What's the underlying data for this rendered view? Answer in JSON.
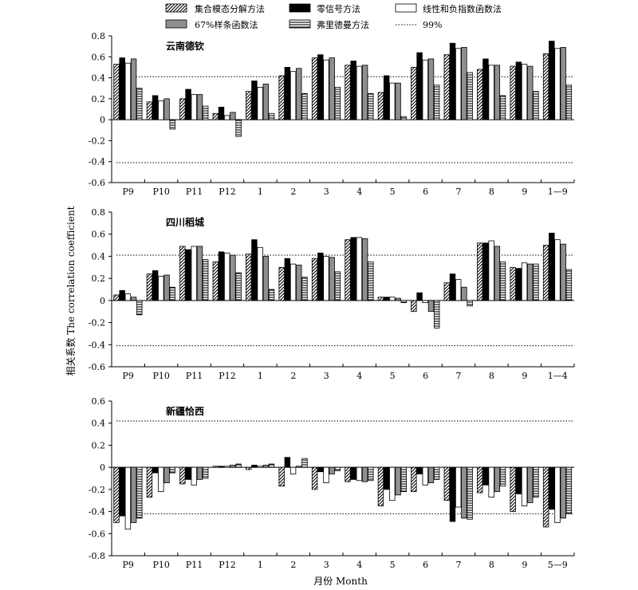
{
  "legend": [
    {
      "id": "eemd",
      "label": "集合模态分解方法"
    },
    {
      "id": "zero",
      "label": "零信号方法"
    },
    {
      "id": "linear",
      "label": "线性和负指数函数法"
    },
    {
      "id": "spline",
      "label": "67%样条函数法"
    },
    {
      "id": "fried",
      "label": "弗里德曼方法"
    },
    {
      "id": "sig",
      "label": "99%"
    }
  ],
  "axes": {
    "ylabel": "相关系数 The correlation coefficient",
    "xlabel": "月份 Month"
  },
  "chart_data": [
    {
      "type": "bar",
      "title": "云南德钦",
      "categories": [
        "P9",
        "P10",
        "P11",
        "P12",
        "1",
        "2",
        "3",
        "4",
        "5",
        "6",
        "7",
        "8",
        "9",
        "1—9"
      ],
      "ylim": [
        -0.6,
        0.8
      ],
      "yticks": [
        "0.8",
        "0.6",
        "0.4",
        "0.2",
        "0",
        "-0.2",
        "-0.4",
        "-0.6"
      ],
      "significance": [
        0.41,
        -0.41
      ],
      "series": [
        {
          "name": "集合模态分解方法",
          "values": [
            0.53,
            0.17,
            0.2,
            0.06,
            0.27,
            0.42,
            0.59,
            0.52,
            0.26,
            0.5,
            0.62,
            0.48,
            0.51,
            0.63
          ]
        },
        {
          "name": "零信号方法",
          "values": [
            0.59,
            0.23,
            0.29,
            0.12,
            0.37,
            0.5,
            0.62,
            0.56,
            0.42,
            0.64,
            0.73,
            0.58,
            0.55,
            0.75
          ]
        },
        {
          "name": "线性和负指数函数法",
          "values": [
            0.54,
            0.18,
            0.24,
            0.04,
            0.31,
            0.46,
            0.57,
            0.51,
            0.35,
            0.57,
            0.68,
            0.52,
            0.53,
            0.68
          ]
        },
        {
          "name": "67%样条函数法",
          "values": [
            0.58,
            0.2,
            0.24,
            0.07,
            0.34,
            0.49,
            0.59,
            0.52,
            0.35,
            0.58,
            0.69,
            0.52,
            0.51,
            0.69
          ]
        },
        {
          "name": "弗里德曼方法",
          "values": [
            0.3,
            -0.09,
            0.13,
            -0.16,
            0.06,
            0.25,
            0.31,
            0.25,
            0.03,
            0.33,
            0.45,
            0.23,
            0.27,
            0.33
          ]
        }
      ]
    },
    {
      "type": "bar",
      "title": "四川稻城",
      "categories": [
        "P9",
        "P10",
        "P11",
        "P12",
        "1",
        "2",
        "3",
        "4",
        "5",
        "6",
        "7",
        "8",
        "9",
        "1—4"
      ],
      "ylim": [
        -0.6,
        0.8
      ],
      "yticks": [
        "0.8",
        "0.6",
        "0.4",
        "0.2",
        "0",
        "-0.2",
        "-0.4",
        "-0.6"
      ],
      "significance": [
        0.41,
        -0.41
      ],
      "series": [
        {
          "name": "集合模态分解方法",
          "values": [
            0.05,
            0.24,
            0.49,
            0.35,
            0.42,
            0.3,
            0.38,
            0.55,
            0.03,
            -0.1,
            0.16,
            0.52,
            0.3,
            0.5
          ]
        },
        {
          "name": "零信号方法",
          "values": [
            0.09,
            0.27,
            0.46,
            0.44,
            0.55,
            0.38,
            0.43,
            0.57,
            0.03,
            0.07,
            0.24,
            0.52,
            0.29,
            0.61
          ]
        },
        {
          "name": "线性和负指数函数法",
          "values": [
            0.06,
            0.22,
            0.49,
            0.43,
            0.48,
            0.33,
            0.4,
            0.57,
            0.03,
            -0.02,
            0.19,
            0.54,
            0.34,
            0.55
          ]
        },
        {
          "name": "67%样条函数法",
          "values": [
            0.03,
            0.23,
            0.49,
            0.41,
            0.4,
            0.32,
            0.39,
            0.56,
            0.02,
            -0.1,
            0.12,
            0.49,
            0.33,
            0.51
          ]
        },
        {
          "name": "弗里德曼方法",
          "values": [
            -0.13,
            0.12,
            0.37,
            0.25,
            0.1,
            0.21,
            0.26,
            0.35,
            -0.02,
            -0.25,
            -0.05,
            0.35,
            0.33,
            0.28
          ]
        }
      ]
    },
    {
      "type": "bar",
      "title": "新疆恰西",
      "categories": [
        "P9",
        "P10",
        "P11",
        "P12",
        "1",
        "2",
        "3",
        "4",
        "5",
        "6",
        "7",
        "8",
        "9",
        "5—9"
      ],
      "ylim": [
        -0.8,
        0.6
      ],
      "yticks": [
        "0.6",
        "0.4",
        "0.2",
        "0",
        "-0.2",
        "-0.4",
        "-0.6",
        "-0.8"
      ],
      "significance": [
        0.42,
        -0.42
      ],
      "series": [
        {
          "name": "集合模态分解方法",
          "values": [
            -0.5,
            -0.27,
            -0.15,
            0.01,
            -0.02,
            -0.17,
            -0.2,
            -0.13,
            -0.35,
            -0.22,
            -0.3,
            -0.23,
            -0.4,
            -0.54
          ]
        },
        {
          "name": "零信号方法",
          "values": [
            -0.44,
            -0.05,
            -0.11,
            0.01,
            0.02,
            0.09,
            -0.04,
            -0.11,
            -0.2,
            -0.06,
            -0.49,
            -0.16,
            -0.24,
            -0.38
          ]
        },
        {
          "name": "线性和负指数函数法",
          "values": [
            -0.56,
            -0.22,
            -0.16,
            0.01,
            0.01,
            -0.06,
            -0.14,
            -0.12,
            -0.3,
            -0.16,
            -0.36,
            -0.27,
            -0.35,
            -0.5
          ]
        },
        {
          "name": "67%样条函数法",
          "values": [
            -0.5,
            -0.14,
            -0.11,
            0.02,
            0.02,
            0.01,
            -0.06,
            -0.13,
            -0.25,
            -0.14,
            -0.46,
            -0.22,
            -0.32,
            -0.46
          ]
        },
        {
          "name": "弗里德曼方法",
          "values": [
            -0.46,
            -0.05,
            -0.1,
            0.03,
            0.03,
            0.08,
            -0.03,
            -0.12,
            -0.22,
            -0.11,
            -0.47,
            -0.17,
            -0.27,
            -0.42
          ]
        }
      ]
    }
  ]
}
